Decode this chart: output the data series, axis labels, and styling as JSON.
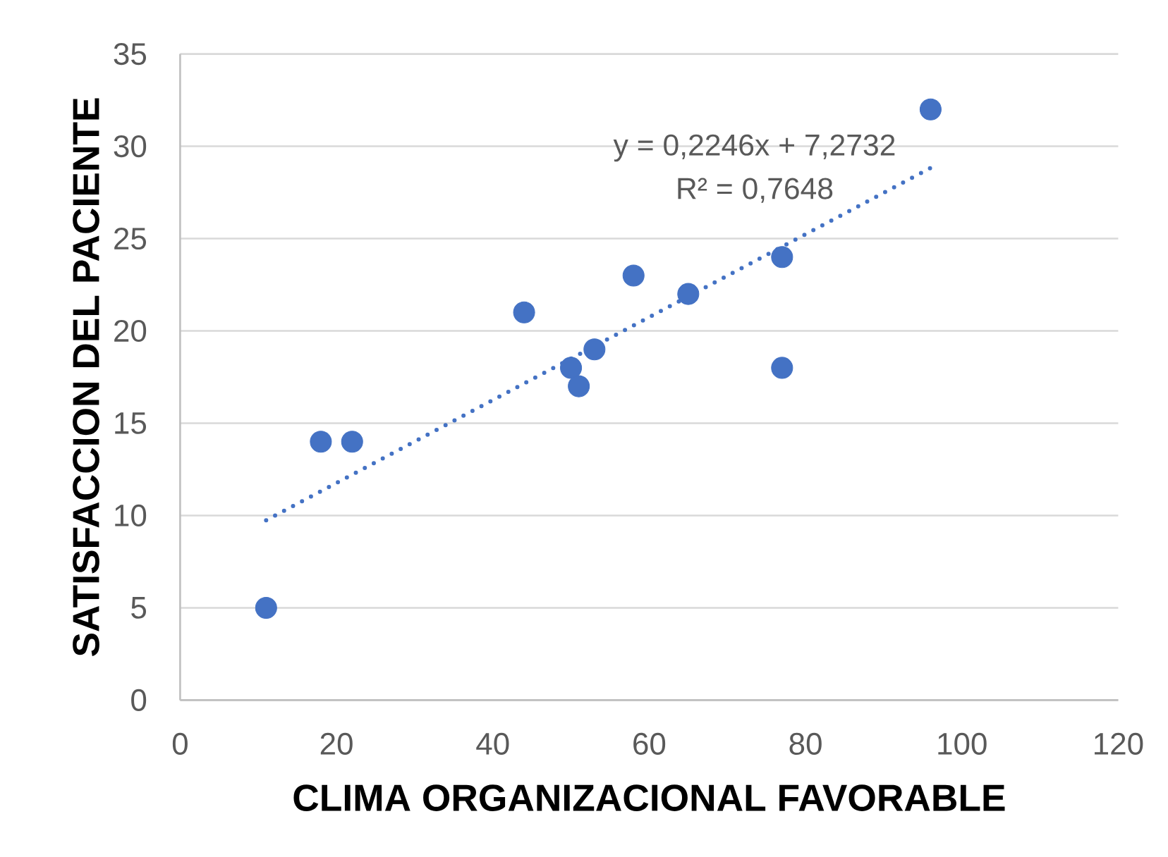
{
  "chart_data": {
    "type": "scatter",
    "xlabel": "CLIMA ORGANIZACIONAL FAVORABLE",
    "ylabel": "SATISFACCION DEL PACIENTE",
    "annotations": [
      "y = 0,2246x + 7,2732",
      "R² = 0,7648"
    ],
    "series": [
      {
        "color": "#4472c4",
        "marker": "circle",
        "x": [
          11,
          18,
          22,
          44,
          50,
          51,
          53,
          58,
          65,
          77,
          77,
          96
        ],
        "values": [
          5,
          14,
          14,
          21,
          18,
          17,
          19,
          23,
          22,
          24,
          18,
          32
        ]
      },
      {
        "type": "line",
        "color": "#4472c4",
        "line_style": "dotted",
        "marker": "none",
        "x": [
          11,
          96
        ],
        "values": [
          9.74,
          28.83
        ]
      }
    ],
    "xlim": [
      0,
      120
    ],
    "ylim": [
      0,
      35
    ],
    "xticks": [
      0,
      20,
      40,
      60,
      80,
      100,
      120
    ],
    "yticks": [
      0,
      5,
      10,
      15,
      20,
      25,
      30,
      35
    ],
    "grid": "y"
  }
}
